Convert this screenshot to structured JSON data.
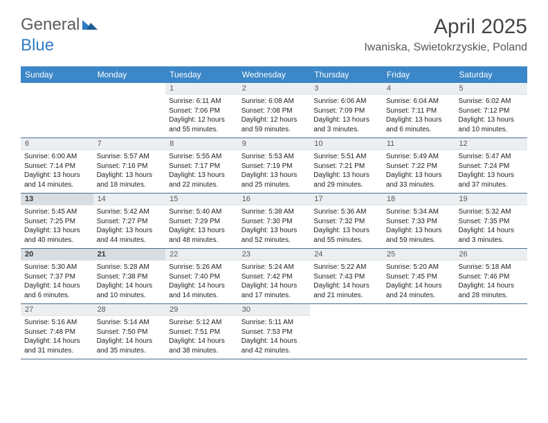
{
  "brand": {
    "general": "General",
    "blue": "Blue"
  },
  "title": "April 2025",
  "location": "Iwaniska, Swietokrzyskie, Poland",
  "colors": {
    "header_bg": "#3b87c8",
    "header_text": "#ffffff",
    "daynum_bg": "#eceff1",
    "daynum_highlight_bg": "#d8dde1",
    "rule": "#4a6a8a",
    "brand_blue": "#2f7cc4",
    "text": "#333333"
  },
  "day_names": [
    "Sunday",
    "Monday",
    "Tuesday",
    "Wednesday",
    "Thursday",
    "Friday",
    "Saturday"
  ],
  "weeks": [
    [
      {
        "day": "",
        "sunrise": "",
        "sunset": "",
        "daylight": ""
      },
      {
        "day": "",
        "sunrise": "",
        "sunset": "",
        "daylight": ""
      },
      {
        "day": "1",
        "sunrise": "Sunrise: 6:11 AM",
        "sunset": "Sunset: 7:06 PM",
        "daylight": "Daylight: 12 hours and 55 minutes."
      },
      {
        "day": "2",
        "sunrise": "Sunrise: 6:08 AM",
        "sunset": "Sunset: 7:08 PM",
        "daylight": "Daylight: 12 hours and 59 minutes."
      },
      {
        "day": "3",
        "sunrise": "Sunrise: 6:06 AM",
        "sunset": "Sunset: 7:09 PM",
        "daylight": "Daylight: 13 hours and 3 minutes."
      },
      {
        "day": "4",
        "sunrise": "Sunrise: 6:04 AM",
        "sunset": "Sunset: 7:11 PM",
        "daylight": "Daylight: 13 hours and 6 minutes."
      },
      {
        "day": "5",
        "sunrise": "Sunrise: 6:02 AM",
        "sunset": "Sunset: 7:12 PM",
        "daylight": "Daylight: 13 hours and 10 minutes."
      }
    ],
    [
      {
        "day": "6",
        "sunrise": "Sunrise: 6:00 AM",
        "sunset": "Sunset: 7:14 PM",
        "daylight": "Daylight: 13 hours and 14 minutes."
      },
      {
        "day": "7",
        "sunrise": "Sunrise: 5:57 AM",
        "sunset": "Sunset: 7:16 PM",
        "daylight": "Daylight: 13 hours and 18 minutes."
      },
      {
        "day": "8",
        "sunrise": "Sunrise: 5:55 AM",
        "sunset": "Sunset: 7:17 PM",
        "daylight": "Daylight: 13 hours and 22 minutes."
      },
      {
        "day": "9",
        "sunrise": "Sunrise: 5:53 AM",
        "sunset": "Sunset: 7:19 PM",
        "daylight": "Daylight: 13 hours and 25 minutes."
      },
      {
        "day": "10",
        "sunrise": "Sunrise: 5:51 AM",
        "sunset": "Sunset: 7:21 PM",
        "daylight": "Daylight: 13 hours and 29 minutes."
      },
      {
        "day": "11",
        "sunrise": "Sunrise: 5:49 AM",
        "sunset": "Sunset: 7:22 PM",
        "daylight": "Daylight: 13 hours and 33 minutes."
      },
      {
        "day": "12",
        "sunrise": "Sunrise: 5:47 AM",
        "sunset": "Sunset: 7:24 PM",
        "daylight": "Daylight: 13 hours and 37 minutes."
      }
    ],
    [
      {
        "day": "13",
        "highlight": true,
        "sunrise": "Sunrise: 5:45 AM",
        "sunset": "Sunset: 7:25 PM",
        "daylight": "Daylight: 13 hours and 40 minutes."
      },
      {
        "day": "14",
        "sunrise": "Sunrise: 5:42 AM",
        "sunset": "Sunset: 7:27 PM",
        "daylight": "Daylight: 13 hours and 44 minutes."
      },
      {
        "day": "15",
        "sunrise": "Sunrise: 5:40 AM",
        "sunset": "Sunset: 7:29 PM",
        "daylight": "Daylight: 13 hours and 48 minutes."
      },
      {
        "day": "16",
        "sunrise": "Sunrise: 5:38 AM",
        "sunset": "Sunset: 7:30 PM",
        "daylight": "Daylight: 13 hours and 52 minutes."
      },
      {
        "day": "17",
        "sunrise": "Sunrise: 5:36 AM",
        "sunset": "Sunset: 7:32 PM",
        "daylight": "Daylight: 13 hours and 55 minutes."
      },
      {
        "day": "18",
        "sunrise": "Sunrise: 5:34 AM",
        "sunset": "Sunset: 7:33 PM",
        "daylight": "Daylight: 13 hours and 59 minutes."
      },
      {
        "day": "19",
        "sunrise": "Sunrise: 5:32 AM",
        "sunset": "Sunset: 7:35 PM",
        "daylight": "Daylight: 14 hours and 3 minutes."
      }
    ],
    [
      {
        "day": "20",
        "highlight": true,
        "sunrise": "Sunrise: 5:30 AM",
        "sunset": "Sunset: 7:37 PM",
        "daylight": "Daylight: 14 hours and 6 minutes."
      },
      {
        "day": "21",
        "highlight": true,
        "sunrise": "Sunrise: 5:28 AM",
        "sunset": "Sunset: 7:38 PM",
        "daylight": "Daylight: 14 hours and 10 minutes."
      },
      {
        "day": "22",
        "sunrise": "Sunrise: 5:26 AM",
        "sunset": "Sunset: 7:40 PM",
        "daylight": "Daylight: 14 hours and 14 minutes."
      },
      {
        "day": "23",
        "sunrise": "Sunrise: 5:24 AM",
        "sunset": "Sunset: 7:42 PM",
        "daylight": "Daylight: 14 hours and 17 minutes."
      },
      {
        "day": "24",
        "sunrise": "Sunrise: 5:22 AM",
        "sunset": "Sunset: 7:43 PM",
        "daylight": "Daylight: 14 hours and 21 minutes."
      },
      {
        "day": "25",
        "sunrise": "Sunrise: 5:20 AM",
        "sunset": "Sunset: 7:45 PM",
        "daylight": "Daylight: 14 hours and 24 minutes."
      },
      {
        "day": "26",
        "sunrise": "Sunrise: 5:18 AM",
        "sunset": "Sunset: 7:46 PM",
        "daylight": "Daylight: 14 hours and 28 minutes."
      }
    ],
    [
      {
        "day": "27",
        "sunrise": "Sunrise: 5:16 AM",
        "sunset": "Sunset: 7:48 PM",
        "daylight": "Daylight: 14 hours and 31 minutes."
      },
      {
        "day": "28",
        "sunrise": "Sunrise: 5:14 AM",
        "sunset": "Sunset: 7:50 PM",
        "daylight": "Daylight: 14 hours and 35 minutes."
      },
      {
        "day": "29",
        "sunrise": "Sunrise: 5:12 AM",
        "sunset": "Sunset: 7:51 PM",
        "daylight": "Daylight: 14 hours and 38 minutes."
      },
      {
        "day": "30",
        "sunrise": "Sunrise: 5:11 AM",
        "sunset": "Sunset: 7:53 PM",
        "daylight": "Daylight: 14 hours and 42 minutes."
      },
      {
        "day": "",
        "sunrise": "",
        "sunset": "",
        "daylight": ""
      },
      {
        "day": "",
        "sunrise": "",
        "sunset": "",
        "daylight": ""
      },
      {
        "day": "",
        "sunrise": "",
        "sunset": "",
        "daylight": ""
      }
    ]
  ]
}
